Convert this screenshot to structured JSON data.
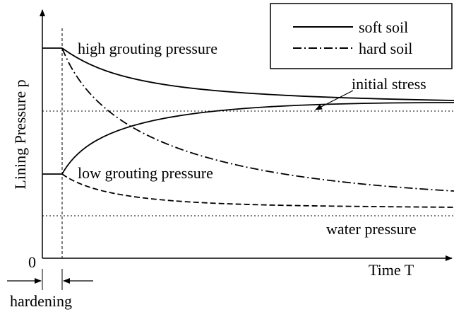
{
  "axes": {
    "y_label": "Lining Pressure p",
    "x_label": "Time T",
    "origin": "0"
  },
  "legend": {
    "items": [
      {
        "label": "soft soil"
      },
      {
        "label": "hard soil"
      }
    ]
  },
  "annotations": {
    "high": "high grouting pressure",
    "low": "low grouting pressure",
    "initial": "initial stress",
    "water": "water pressure",
    "hardening": "hardening"
  }
}
